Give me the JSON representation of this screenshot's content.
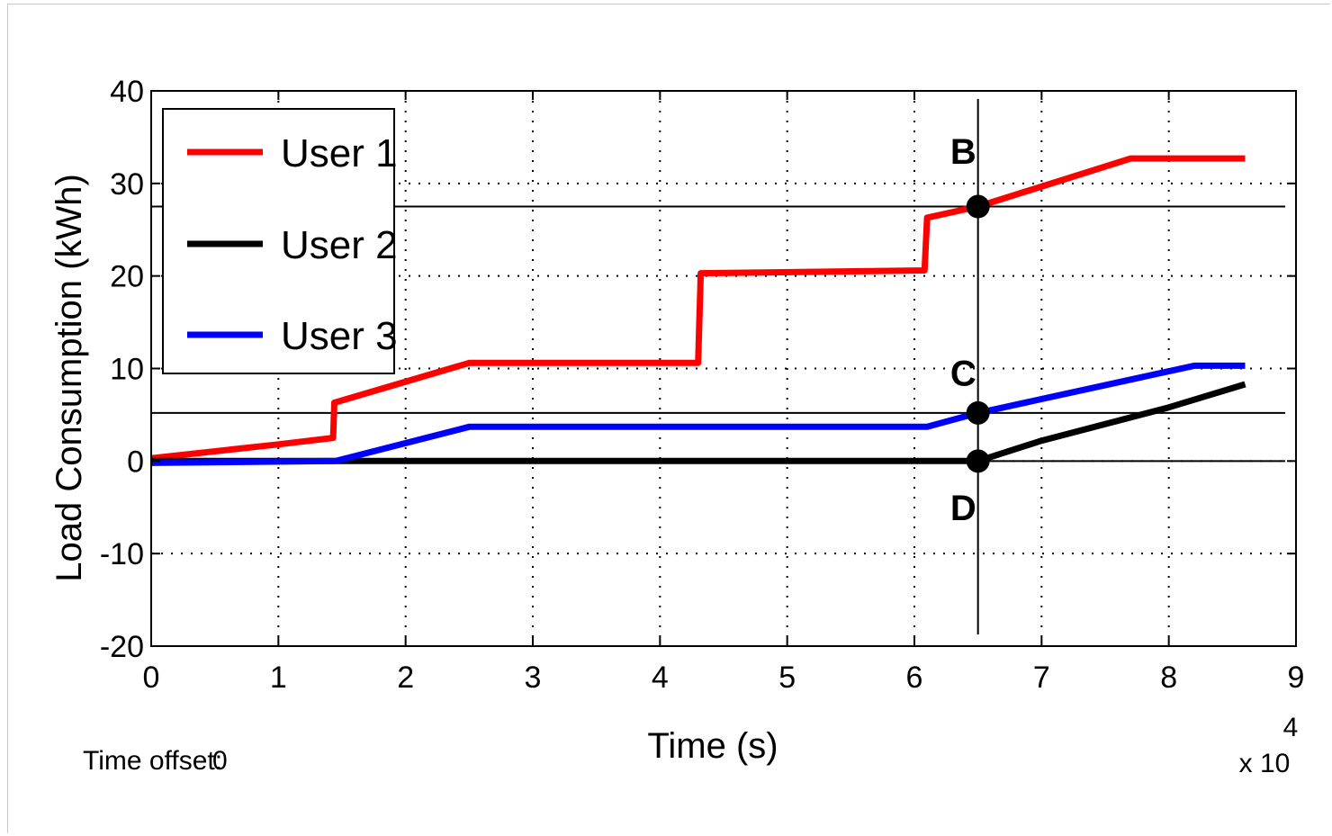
{
  "chart_data": {
    "type": "line",
    "xlabel": "Time (s)",
    "ylabel": "Load Consumption (kWh)",
    "x_multiplier": "x 10",
    "x_multiplier_exp": "4",
    "time_offset_label": "Time offset:",
    "time_offset_value": "0",
    "xlim": [
      0,
      9
    ],
    "ylim": [
      -20,
      40
    ],
    "xticks": [
      0,
      1,
      2,
      3,
      4,
      5,
      6,
      7,
      8,
      9
    ],
    "yticks": [
      -20,
      -10,
      0,
      10,
      20,
      30,
      40
    ],
    "grid": true,
    "legend_position": "top-left",
    "series": [
      {
        "name": "User 1",
        "color": "#ff0000",
        "points": [
          [
            0,
            0.3
          ],
          [
            1.0,
            1.8
          ],
          [
            1.43,
            2.5
          ],
          [
            1.44,
            6.3
          ],
          [
            2.5,
            10.6
          ],
          [
            4.3,
            10.6
          ],
          [
            4.32,
            20.3
          ],
          [
            6.08,
            20.6
          ],
          [
            6.1,
            26.3
          ],
          [
            6.5,
            27.5
          ],
          [
            7.7,
            32.7
          ],
          [
            8.6,
            32.7
          ]
        ]
      },
      {
        "name": "User 2",
        "color": "#000000",
        "points": [
          [
            0,
            0
          ],
          [
            6.5,
            0
          ],
          [
            7.0,
            2.2
          ],
          [
            8.0,
            5.8
          ],
          [
            8.6,
            8.3
          ]
        ]
      },
      {
        "name": "User 3",
        "color": "#0000ff",
        "points": [
          [
            0,
            -0.2
          ],
          [
            1.45,
            0
          ],
          [
            2.5,
            3.7
          ],
          [
            6.1,
            3.7
          ],
          [
            6.5,
            5.2
          ],
          [
            8.2,
            10.3
          ],
          [
            8.6,
            10.3
          ]
        ]
      }
    ],
    "annotations": [
      {
        "label": "B",
        "x": 6.5,
        "y": 27.5,
        "label_x": 6.2,
        "label_y": 33.5
      },
      {
        "label": "C",
        "x": 6.5,
        "y": 5.2,
        "label_x": 6.2,
        "label_y": 9.5
      },
      {
        "label": "D",
        "x": 6.5,
        "y": 0,
        "label_x": 6.2,
        "label_y": -5
      }
    ],
    "reference_lines": {
      "vertical_x": 6.5,
      "horizontal_y": [
        27.5,
        5.2,
        0
      ]
    }
  }
}
